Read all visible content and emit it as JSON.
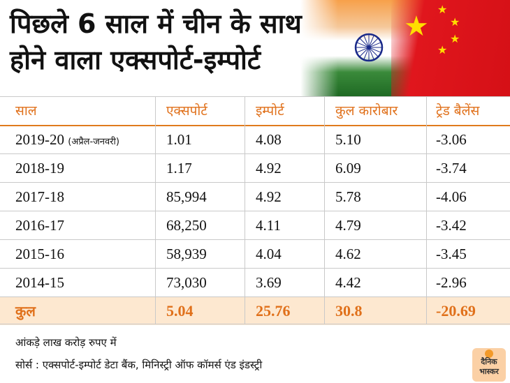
{
  "title": {
    "line1": "पिछले 6 साल में चीन के साथ",
    "line2": "होने वाला एक्सपोर्ट-इम्पोर्ट"
  },
  "table": {
    "headers": [
      "साल",
      "एक्सपोर्ट",
      "इम्पोर्ट",
      "कुल कारोबार",
      "ट्रेड बैलेंस"
    ],
    "rows": [
      {
        "year": "2019-20",
        "note": "(अप्रैल-जनवरी)",
        "export": "1.01",
        "import": "4.08",
        "total": "5.10",
        "balance": "-3.06"
      },
      {
        "year": "2018-19",
        "note": "",
        "export": "1.17",
        "import": "4.92",
        "total": "6.09",
        "balance": "-3.74"
      },
      {
        "year": "2017-18",
        "note": "",
        "export": "85,994",
        "import": "4.92",
        "total": "5.78",
        "balance": "-4.06"
      },
      {
        "year": "2016-17",
        "note": "",
        "export": "68,250",
        "import": "4.11",
        "total": "4.79",
        "balance": "-3.42"
      },
      {
        "year": "2015-16",
        "note": "",
        "export": "58,939",
        "import": "4.04",
        "total": "4.62",
        "balance": "-3.45"
      },
      {
        "year": "2014-15",
        "note": "",
        "export": "73,030",
        "import": "3.69",
        "total": "4.42",
        "balance": "-2.96"
      }
    ],
    "total": {
      "label": "कुल",
      "export": "5.04",
      "import": "25.76",
      "total": "30.8",
      "balance": "-20.69"
    }
  },
  "footer": {
    "note": "आंकड़े लाख करोड़ रुपए में",
    "source": "सोर्स : एक्सपोर्ट-इम्पोर्ट डेटा बैंक, मिनिस्ट्री ऑफ कॉमर्स एंड इंडस्ट्री"
  },
  "logo": {
    "line1": "दैनिक",
    "line2": "भास्कर"
  },
  "colors": {
    "accent": "#e0701a",
    "total_bg": "#fde8d0",
    "grid": "#c9c9c9"
  }
}
